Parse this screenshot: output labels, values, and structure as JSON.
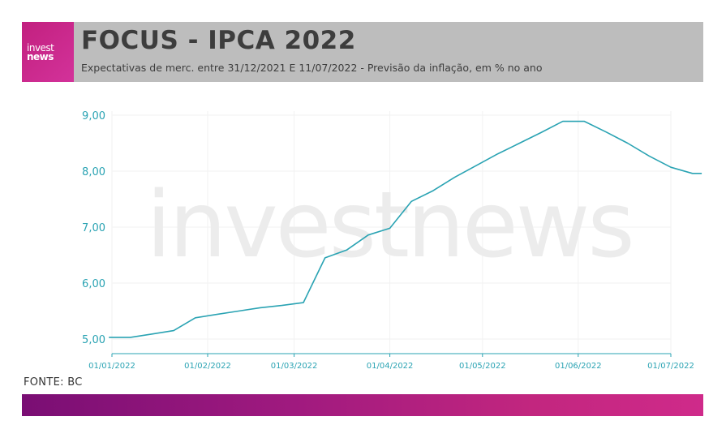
{
  "header": {
    "logo_line1": "invest",
    "logo_line2": "news",
    "title": "FOCUS - IPCA 2022",
    "subtitle": "Expectativas de merc. entre 31/12/2021 E 11/07/2022 - Previsão da inflação, em % no ano"
  },
  "watermark": "investnews",
  "source": "FONTE: BC",
  "colors": {
    "line": "#2aa3b3",
    "tick_text": "#2aa3b3",
    "grid": "#f2f2f2",
    "header_bg": "#bdbdbd",
    "brand": "#c2207f"
  },
  "chart_data": {
    "type": "line",
    "title": "FOCUS - IPCA 2022",
    "subtitle": "Expectativas de merc. entre 31/12/2021 E 11/07/2022 - Previsão da inflação, em % no ano",
    "xlabel": "",
    "ylabel": "",
    "ylim": [
      4.9,
      9.1
    ],
    "yticks": [
      5.0,
      6.0,
      7.0,
      8.0,
      9.0
    ],
    "ytick_labels": [
      "5,00",
      "6,00",
      "7,00",
      "8,00",
      "9,00"
    ],
    "xlim": [
      "2021-12-31",
      "2022-07-11"
    ],
    "xticks": [
      "2022-01-01",
      "2022-02-01",
      "2022-03-01",
      "2022-04-01",
      "2022-05-01",
      "2022-06-01",
      "2022-07-01"
    ],
    "xtick_labels": [
      "01/01/2022",
      "01/02/2022",
      "01/03/2022",
      "01/04/2022",
      "01/05/2022",
      "01/06/2022",
      "01/07/2022"
    ],
    "grid": true,
    "legend": "none",
    "series": [
      {
        "name": "",
        "x": [
          "2021-12-31",
          "2022-01-07",
          "2022-01-14",
          "2022-01-21",
          "2022-01-28",
          "2022-02-04",
          "2022-02-11",
          "2022-02-18",
          "2022-02-25",
          "2022-03-04",
          "2022-03-11",
          "2022-03-18",
          "2022-03-25",
          "2022-04-01",
          "2022-04-08",
          "2022-04-15",
          "2022-04-22",
          "2022-04-29",
          "2022-05-06",
          "2022-05-13",
          "2022-05-20",
          "2022-05-27",
          "2022-06-03",
          "2022-06-10",
          "2022-06-17",
          "2022-06-24",
          "2022-07-01",
          "2022-07-08",
          "2022-07-11"
        ],
        "values": [
          5.03,
          5.03,
          5.09,
          5.15,
          5.38,
          5.44,
          5.5,
          5.56,
          5.6,
          5.65,
          6.45,
          6.59,
          6.86,
          6.98,
          7.46,
          7.65,
          7.89,
          8.1,
          8.31,
          8.5,
          8.69,
          8.89,
          8.89,
          8.7,
          8.5,
          8.27,
          8.07,
          7.96,
          7.96
        ]
      }
    ]
  }
}
